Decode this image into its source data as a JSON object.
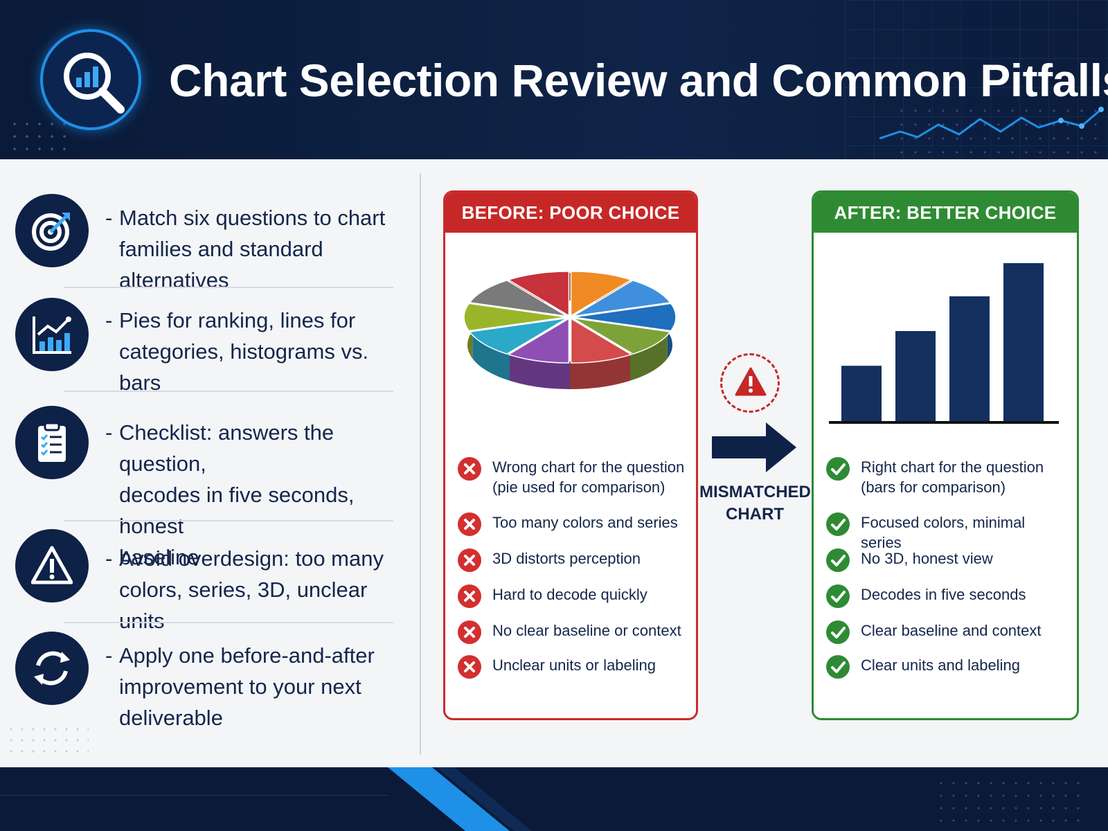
{
  "header": {
    "title": "Chart Selection Review and Common Pitfalls",
    "logo_icon": "magnifier-bar-chart-icon"
  },
  "left_items": [
    {
      "icon": "target-arrow-icon",
      "dash": "-",
      "lines": [
        "Match six questions to chart",
        "families and standard alternatives"
      ]
    },
    {
      "icon": "bar-line-chart-icon",
      "dash": "-",
      "lines": [
        "Pies for ranking, lines for",
        "categories, histograms vs. bars"
      ]
    },
    {
      "icon": "clipboard-checklist-icon",
      "dash": "-",
      "lines": [
        "Checklist: answers the question,",
        "decodes in five seconds, honest",
        "baseline"
      ]
    },
    {
      "icon": "warning-triangle-icon",
      "dash": "-",
      "lines": [
        "Avoid overdesign: too many",
        "colors, series, 3D, unclear units"
      ]
    },
    {
      "icon": "refresh-cycle-icon",
      "dash": "-",
      "lines": [
        "Apply one before-and-after",
        "improvement to your next",
        "deliverable"
      ]
    }
  ],
  "before": {
    "heading": "BEFORE: POOR CHOICE",
    "items": [
      "Wrong chart for the question (pie used for comparison)",
      "Too many colors and series",
      "3D distorts perception",
      "Hard to decode quickly",
      "No clear baseline or context",
      "Unclear units or labeling"
    ],
    "pie_colors": [
      "#f08a24",
      "#3f8fdc",
      "#1f6fbf",
      "#7da23a",
      "#d34b4b",
      "#8e4fb5",
      "#2aa9c9",
      "#9bb52a",
      "#7a7a7a",
      "#c8323a"
    ]
  },
  "center": {
    "label": "MISMATCHED CHART",
    "warning_icon": "warning-triangle-icon",
    "arrow_icon": "right-arrow-icon"
  },
  "after": {
    "heading": "AFTER: BETTER CHOICE",
    "items": [
      "Right chart for the question (bars for comparison)",
      "Focused colors, minimal series",
      "No 3D, honest view",
      "Decodes in five seconds",
      "Clear baseline and context",
      "Clear units and labeling"
    ],
    "bar_values": [
      0.35,
      0.57,
      0.79,
      1.0
    ],
    "bar_color": "#13305e"
  },
  "colors": {
    "navy": "#0a1a38",
    "accent_blue": "#1e90e8",
    "bad_red": "#c62828",
    "good_green": "#2e8b34"
  }
}
